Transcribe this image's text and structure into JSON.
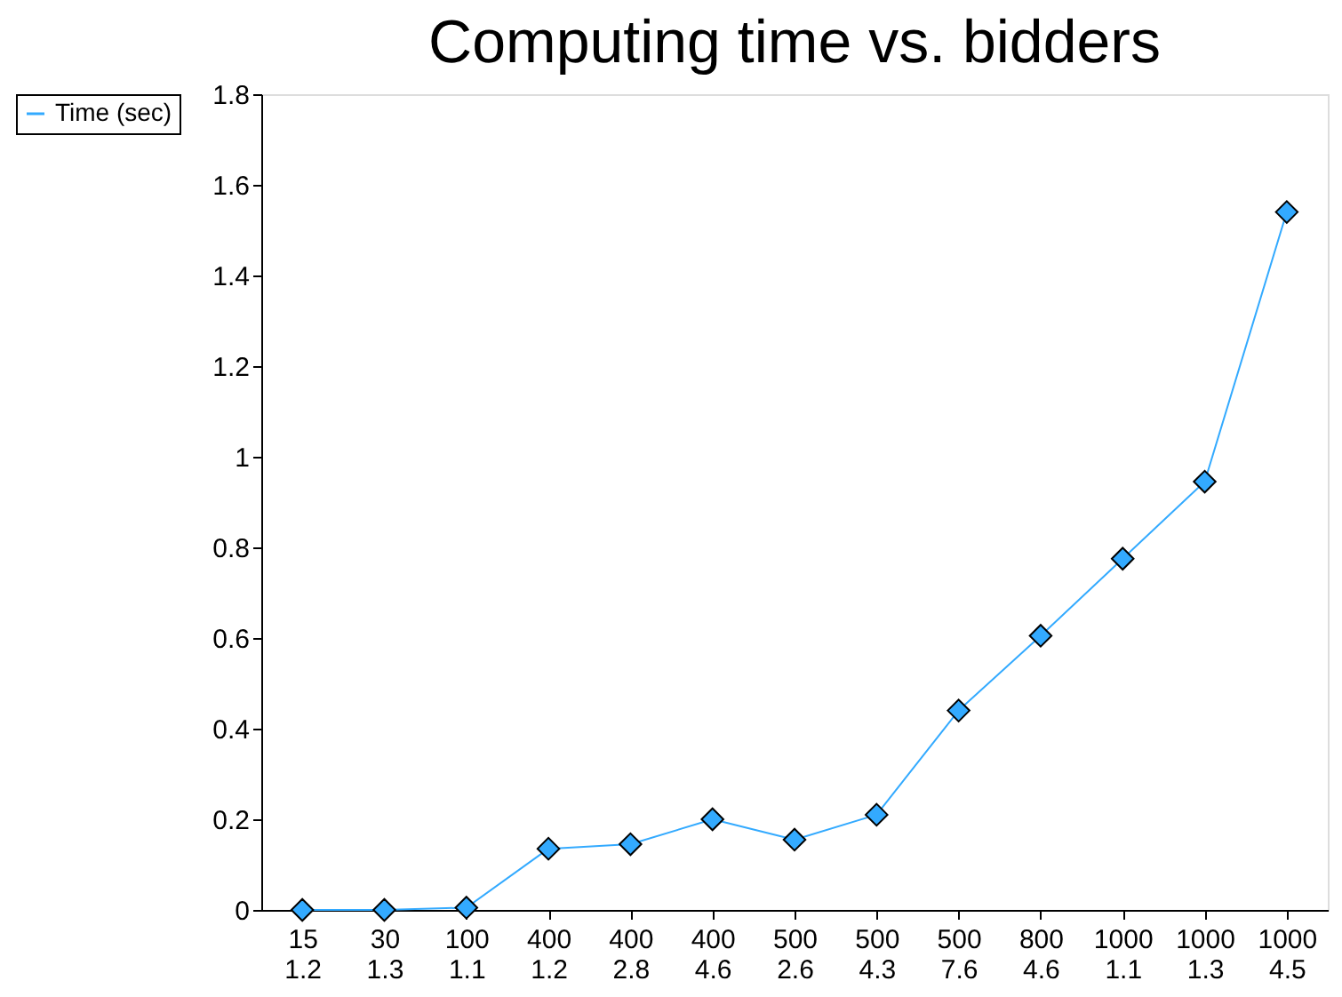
{
  "chart_data": {
    "type": "line",
    "title": "Computing time vs. bidders",
    "categories": [
      "15\n1.2",
      "30\n1.3",
      "100\n1.1",
      "400\n1.2",
      "400\n2.8",
      "400\n4.6",
      "500\n2.6",
      "500\n4.3",
      "500\n7.6",
      "800\n4.6",
      "1000\n1.1",
      "1000\n1.3",
      "1000\n4.5"
    ],
    "series": [
      {
        "name": "Time (sec)",
        "color": "#33aaff",
        "values": [
          0,
          0,
          0.005,
          0.135,
          0.145,
          0.2,
          0.155,
          0.21,
          0.44,
          0.605,
          0.775,
          0.945,
          1.54
        ]
      }
    ],
    "ylim": [
      0,
      1.8
    ],
    "yticks": [
      0,
      0.2,
      0.4,
      0.6,
      0.8,
      1,
      1.2,
      1.4,
      1.6,
      1.8
    ],
    "grid": false,
    "legend": "left",
    "marker": "diamond",
    "line_style": "solid"
  }
}
